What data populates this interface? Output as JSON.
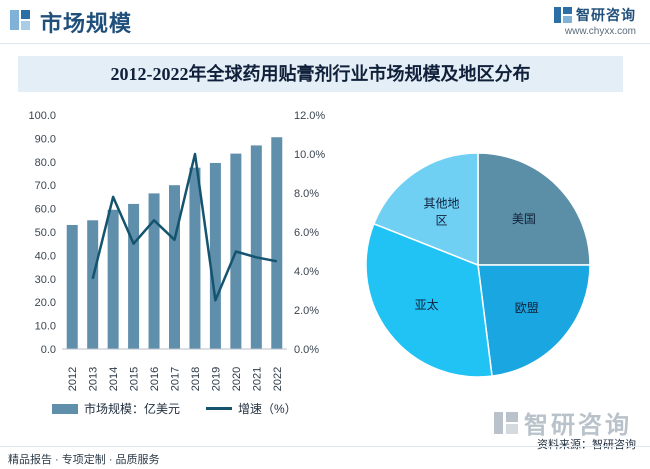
{
  "header": {
    "title": "市场规模",
    "logo_name": "智研咨询",
    "logo_url": "www.chyxx.com"
  },
  "chart_title": "2012-2022年全球药用贴膏剂行业市场规模及地区分布",
  "chart_data": [
    {
      "type": "bar",
      "categories": [
        "2012",
        "2013",
        "2014",
        "2015",
        "2016",
        "2017",
        "2018",
        "2019",
        "2020",
        "2021",
        "2022"
      ],
      "series": [
        {
          "name": "市场规模：亿美元",
          "type": "bar",
          "axis": "left",
          "color": "#5f8fab",
          "values": [
            53,
            55,
            59.5,
            62,
            66.5,
            70,
            77.5,
            79.5,
            83.5,
            87,
            90.5
          ]
        },
        {
          "name": "增速（%）",
          "type": "line",
          "axis": "right",
          "color": "#14546f",
          "values": [
            null,
            3.6,
            7.8,
            5.4,
            6.6,
            5.6,
            10.0,
            2.5,
            5.0,
            4.7,
            4.5
          ]
        }
      ],
      "y_left": {
        "min": 0,
        "max": 100,
        "step": 10,
        "ticks": [
          "0.0",
          "10.0",
          "20.0",
          "30.0",
          "40.0",
          "50.0",
          "60.0",
          "70.0",
          "80.0",
          "90.0",
          "100.0"
        ]
      },
      "y_right": {
        "min": 0,
        "max": 12,
        "step": 2,
        "ticks": [
          "0.0%",
          "2.0%",
          "4.0%",
          "6.0%",
          "8.0%",
          "10.0%",
          "12.0%"
        ]
      },
      "legend": "bottom"
    },
    {
      "type": "pie",
      "start": "top",
      "direction": "clockwise",
      "slices": [
        {
          "label": "美国",
          "value": 25,
          "color": "#5b8fa8"
        },
        {
          "label": "欧盟",
          "value": 23,
          "color": "#1aa6e0"
        },
        {
          "label": "亚太",
          "value": 33,
          "color": "#21c3f5"
        },
        {
          "label": "其他地区",
          "label_lines": [
            "其他地",
            "区"
          ],
          "value": 19,
          "color": "#6fd0f4"
        }
      ]
    }
  ],
  "legend": {
    "bar_label": "市场规模：亿美元",
    "line_label": "增速（%）"
  },
  "watermark_text": "智研咨询",
  "source": "资料来源：智研咨询",
  "footer": "精品报告 · 专项定制 · 品质服务"
}
